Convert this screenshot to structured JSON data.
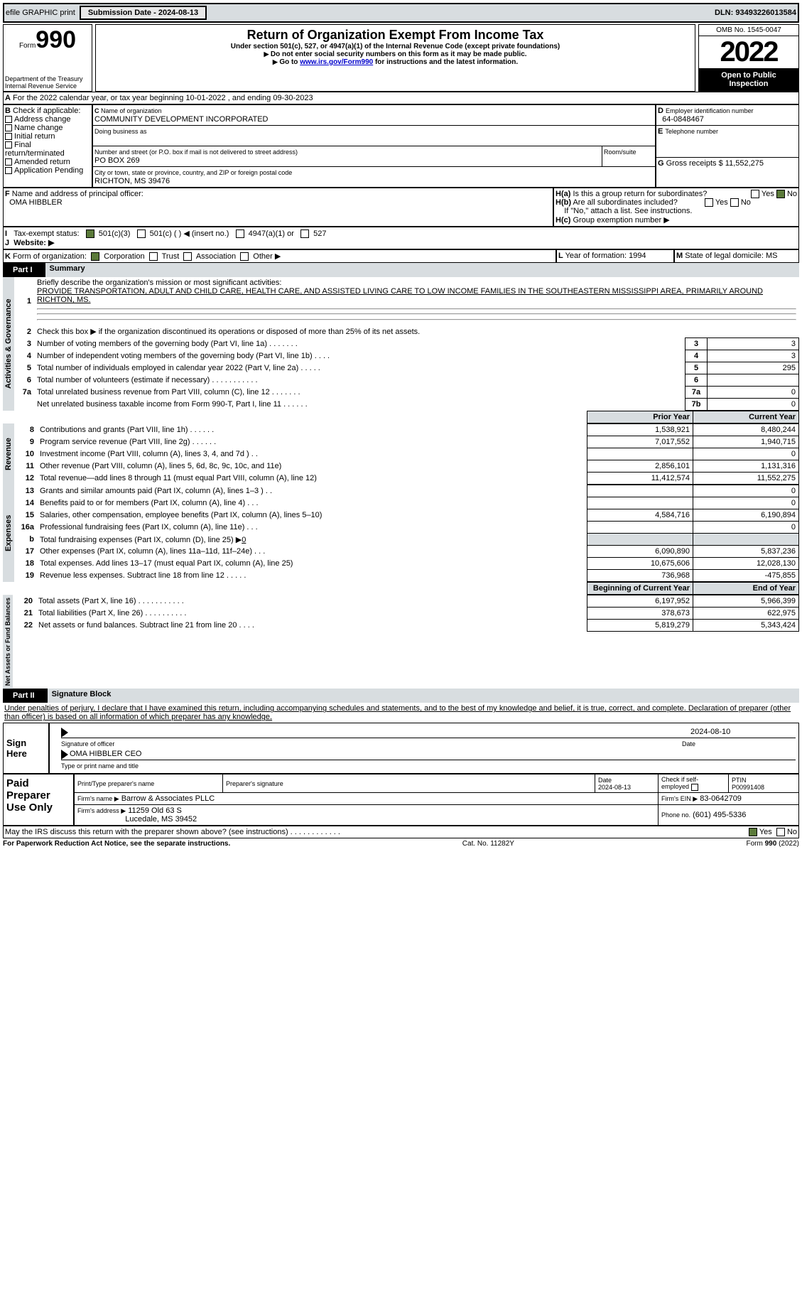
{
  "topbar": {
    "efile": "efile GRAPHIC print",
    "submission": "Submission Date - 2024-08-13",
    "dln": "DLN: 93493226013584"
  },
  "header": {
    "form_prefix": "Form",
    "form_num": "990",
    "title": "Return of Organization Exempt From Income Tax",
    "subtitle": "Under section 501(c), 527, or 4947(a)(1) of the Internal Revenue Code (except private foundations)",
    "note1": "Do not enter social security numbers on this form as it may be made public.",
    "note2_pre": "Go to ",
    "note2_link": "www.irs.gov/Form990",
    "note2_post": " for instructions and the latest information.",
    "dept": "Department of the Treasury",
    "irs": "Internal Revenue Service",
    "omb": "OMB No. 1545-0047",
    "year": "2022",
    "inspect": "Open to Public Inspection"
  },
  "a": {
    "line": "For the 2022 calendar year, or tax year beginning 10-01-2022   , and ending 09-30-2023"
  },
  "b": {
    "label": "Check if applicable:",
    "opts": [
      "Address change",
      "Name change",
      "Initial return",
      "Final return/terminated",
      "Amended return",
      "Application Pending"
    ]
  },
  "c": {
    "name_lbl": "Name of organization",
    "name": "COMMUNITY DEVELOPMENT INCORPORATED",
    "dba_lbl": "Doing business as",
    "addr_lbl": "Number and street (or P.O. box if mail is not delivered to street address)",
    "room_lbl": "Room/suite",
    "addr": "PO BOX 269",
    "city_lbl": "City or town, state or province, country, and ZIP or foreign postal code",
    "city": "RICHTON, MS  39476"
  },
  "d": {
    "lbl": "Employer identification number",
    "val": "64-0848467"
  },
  "e": {
    "lbl": "Telephone number"
  },
  "g": {
    "lbl": "Gross receipts $",
    "val": "11,552,275"
  },
  "f": {
    "lbl": "Name and address of principal officer:",
    "name": "OMA HIBBLER"
  },
  "h": {
    "a": "Is this a group return for subordinates?",
    "b": "Are all subordinates included?",
    "c": "If \"No,\" attach a list. See instructions.",
    "d": "Group exemption number ▶",
    "yes": "Yes",
    "no": "No"
  },
  "i": {
    "lbl": "Tax-exempt status:",
    "o1": "501(c)(3)",
    "o2": "501(c) (  ) ◀ (insert no.)",
    "o3": "4947(a)(1) or",
    "o4": "527"
  },
  "j": {
    "lbl": "Website: ▶"
  },
  "k": {
    "lbl": "Form of organization:",
    "o1": "Corporation",
    "o2": "Trust",
    "o3": "Association",
    "o4": "Other ▶"
  },
  "l": {
    "lbl": "Year of formation:",
    "val": "1994"
  },
  "m": {
    "lbl": "State of legal domicile:",
    "val": "MS"
  },
  "part1": {
    "lbl": "Part I",
    "title": "Summary"
  },
  "side": {
    "s1": "Activities & Governance",
    "s2": "Revenue",
    "s3": "Expenses",
    "s4": "Net Assets or Fund Balances"
  },
  "p1": {
    "l1": "Briefly describe the organization's mission or most significant activities:",
    "l1v": "PROVIDE TRANSPORTATION, ADULT AND CHILD CARE, HEALTH CARE, AND ASSISTED LIVING CARE TO LOW INCOME FAMILIES IN THE SOUTHEASTERN MISSISSIPPI AREA, PRIMARILY AROUND RICHTON, MS.",
    "l2": "Check this box ▶      if the organization discontinued its operations or disposed of more than 25% of its net assets.",
    "rows": [
      {
        "n": "3",
        "t": "Number of voting members of the governing body (Part VI, line 1a)   .    .    .    .    .    .    .",
        "box": "3",
        "v": "3"
      },
      {
        "n": "4",
        "t": "Number of independent voting members of the governing body (Part VI, line 1b)   .    .    .    .",
        "box": "4",
        "v": "3"
      },
      {
        "n": "5",
        "t": "Total number of individuals employed in calendar year 2022 (Part V, line 2a)   .    .    .    .    .",
        "box": "5",
        "v": "295"
      },
      {
        "n": "6",
        "t": "Total number of volunteers (estimate if necessary)   .    .    .    .    .    .    .    .    .    .    .",
        "box": "6",
        "v": ""
      },
      {
        "n": "7a",
        "t": "Total unrelated business revenue from Part VIII, column (C), line 12   .    .    .    .    .    .    .",
        "box": "7a",
        "v": "0"
      },
      {
        "n": "",
        "t": "Net unrelated business taxable income from Form 990-T, Part I, line 11   .    .    .    .    .    .",
        "box": "7b",
        "v": "0"
      }
    ],
    "prior": "Prior Year",
    "current": "Current Year",
    "rev": [
      {
        "n": "8",
        "t": "Contributions and grants (Part VIII, line 1h)    .    .    .    .    .    .",
        "p": "1,538,921",
        "c": "8,480,244"
      },
      {
        "n": "9",
        "t": "Program service revenue (Part VIII, line 2g)    .    .    .    .    .    .",
        "p": "7,017,552",
        "c": "1,940,715"
      },
      {
        "n": "10",
        "t": "Investment income (Part VIII, column (A), lines 3, 4, and 7d )    .    .",
        "p": "",
        "c": "0"
      },
      {
        "n": "11",
        "t": "Other revenue (Part VIII, column (A), lines 5, 6d, 8c, 9c, 10c, and 11e)",
        "p": "2,856,101",
        "c": "1,131,316"
      },
      {
        "n": "12",
        "t": "Total revenue—add lines 8 through 11 (must equal Part VIII, column (A), line 12)",
        "p": "11,412,574",
        "c": "11,552,275"
      }
    ],
    "exp": [
      {
        "n": "13",
        "t": "Grants and similar amounts paid (Part IX, column (A), lines 1–3 )   .    .",
        "p": "",
        "c": "0"
      },
      {
        "n": "14",
        "t": "Benefits paid to or for members (Part IX, column (A), line 4)    .    .    .",
        "p": "",
        "c": "0"
      },
      {
        "n": "15",
        "t": "Salaries, other compensation, employee benefits (Part IX, column (A), lines 5–10)",
        "p": "4,584,716",
        "c": "6,190,894"
      },
      {
        "n": "16a",
        "t": "Professional fundraising fees (Part IX, column (A), line 11e)    .    .    .",
        "p": "",
        "c": "0"
      },
      {
        "n": "b",
        "t": "Total fundraising expenses (Part IX, column (D), line 25) ▶",
        "bval": "0",
        "p": "grey",
        "c": "grey"
      },
      {
        "n": "17",
        "t": "Other expenses (Part IX, column (A), lines 11a–11d, 11f–24e)    .    .    .",
        "p": "6,090,890",
        "c": "5,837,236"
      },
      {
        "n": "18",
        "t": "Total expenses. Add lines 13–17 (must equal Part IX, column (A), line 25)",
        "p": "10,675,606",
        "c": "12,028,130"
      },
      {
        "n": "19",
        "t": "Revenue less expenses. Subtract line 18 from line 12   .    .    .    .    .",
        "p": "736,968",
        "c": "-475,855"
      }
    ],
    "beg": "Beginning of Current Year",
    "end": "End of Year",
    "net": [
      {
        "n": "20",
        "t": "Total assets (Part X, line 16)   .    .    .    .    .    .    .    .    .    .    .",
        "p": "6,197,952",
        "c": "5,966,399"
      },
      {
        "n": "21",
        "t": "Total liabilities (Part X, line 26)   .    .    .    .    .    .    .    .    .    .",
        "p": "378,673",
        "c": "622,975"
      },
      {
        "n": "22",
        "t": "Net assets or fund balances. Subtract line 21 from line 20   .    .    .    .",
        "p": "5,819,279",
        "c": "5,343,424"
      }
    ]
  },
  "part2": {
    "lbl": "Part II",
    "title": "Signature Block"
  },
  "sig": {
    "decl": "Under penalties of perjury, I declare that I have examined this return, including accompanying schedules and statements, and to the best of my knowledge and belief, it is true, correct, and complete. Declaration of preparer (other than officer) is based on all information of which preparer has any knowledge.",
    "here": "Sign Here",
    "sig_officer": "Signature of officer",
    "date": "Date",
    "date_val": "2024-08-10",
    "name": "OMA HIBBLER  CEO",
    "name_lbl": "Type or print name and title"
  },
  "prep": {
    "title": "Paid Preparer Use Only",
    "h": [
      "Print/Type preparer's name",
      "Preparer's signature",
      "Date",
      "Check        if self-employed",
      "PTIN"
    ],
    "date": "2024-08-13",
    "ptin": "P00991408",
    "firm_lbl": "Firm's name   ▶",
    "firm": "Barrow & Associates PLLC",
    "ein_lbl": "Firm's EIN ▶",
    "ein": "83-0642709",
    "addr_lbl": "Firm's address ▶",
    "addr1": "11259 Old 63 S",
    "addr2": "Lucedale, MS  39452",
    "phone_lbl": "Phone no.",
    "phone": "(601) 495-5336"
  },
  "discuss": "May the IRS discuss this return with the preparer shown above? (see instructions)    .    .    .    .    .    .    .    .    .    .    .    .",
  "footer": {
    "left": "For Paperwork Reduction Act Notice, see the separate instructions.",
    "mid": "Cat. No. 11282Y",
    "right": "Form 990 (2022)"
  }
}
